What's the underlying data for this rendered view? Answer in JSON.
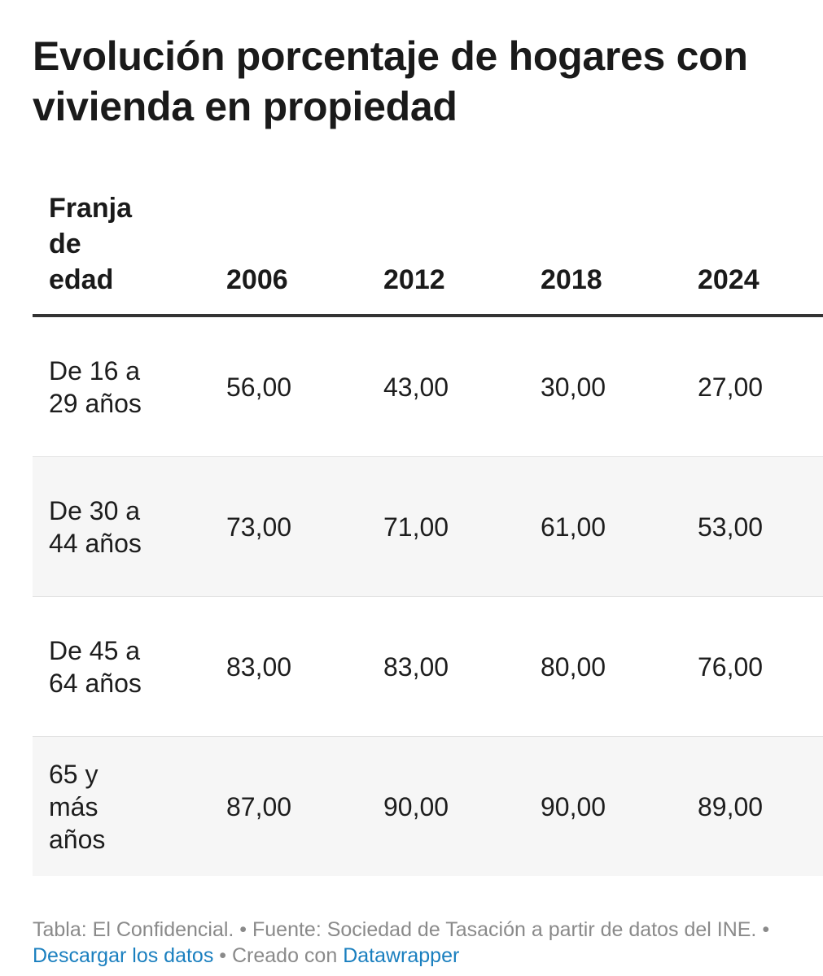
{
  "title": "Evolución porcentaje de hogares con vivienda en propiedad",
  "table": {
    "header_label": "Franja de edad",
    "columns": [
      "2006",
      "2012",
      "2018",
      "2024"
    ],
    "rows": [
      {
        "label": "De 16 a 29 años",
        "values": [
          "56,00",
          "43,00",
          "30,00",
          "27,00"
        ]
      },
      {
        "label": "De 30 a 44 años",
        "values": [
          "73,00",
          "71,00",
          "61,00",
          "53,00"
        ]
      },
      {
        "label": "De 45 a 64 años",
        "values": [
          "83,00",
          "83,00",
          "80,00",
          "76,00"
        ]
      },
      {
        "label": "65 y más años",
        "values": [
          "87,00",
          "90,00",
          "90,00",
          "89,00"
        ]
      }
    ]
  },
  "chart_data": {
    "type": "table",
    "title": "Evolución porcentaje de hogares con vivienda en propiedad",
    "columns": [
      "Franja de edad",
      "2006",
      "2012",
      "2018",
      "2024"
    ],
    "categories": [
      "De 16 a 29 años",
      "De 30 a 44 años",
      "De 45 a 64 años",
      "65 y más años"
    ],
    "series": [
      {
        "name": "2006",
        "values": [
          56,
          73,
          83,
          87
        ]
      },
      {
        "name": "2012",
        "values": [
          43,
          71,
          83,
          90
        ]
      },
      {
        "name": "2018",
        "values": [
          30,
          61,
          80,
          90
        ]
      },
      {
        "name": "2024",
        "values": [
          27,
          53,
          76,
          89
        ]
      }
    ]
  },
  "footer": {
    "text_prefix": "Tabla: El Confidencial. • Fuente: Sociedad de Tasación a partir de datos del INE. •",
    "download_label": "Descargar los datos",
    "separator": "• Creado con",
    "datawrapper_label": "Datawrapper"
  },
  "colors": {
    "link": "#1a7fbf",
    "footer_text": "#8a8a8a",
    "stripe": "#f6f6f6",
    "header_rule": "#333333"
  }
}
